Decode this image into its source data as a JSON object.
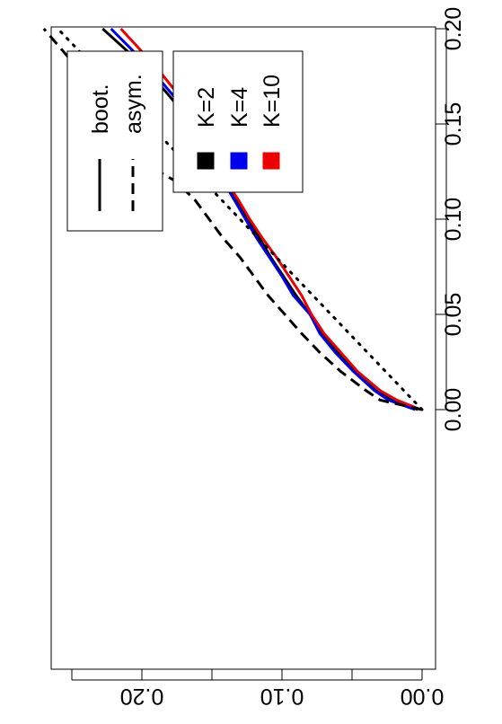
{
  "chart_data": {
    "type": "line",
    "orientation": "rotated-90",
    "title": "",
    "xlabel": "",
    "ylabel": "",
    "xlim": [
      0,
      0.2
    ],
    "ylim": [
      0,
      0.26
    ],
    "x_ticks": [
      "0.00",
      "0.05",
      "0.10",
      "0.15",
      "0.20"
    ],
    "y_ticks": [
      "0.00",
      "0.10",
      "0.20"
    ],
    "grid": false,
    "legend_styles": {
      "position": "top-left",
      "entries": [
        {
          "label": "boot.",
          "dash": "solid"
        },
        {
          "label": "asym.",
          "dash": "dashed"
        }
      ]
    },
    "legend_K": {
      "position": "top-left",
      "entries": [
        {
          "label": "K=2",
          "color": "#000000"
        },
        {
          "label": "K=4",
          "color": "#0000ee"
        },
        {
          "label": "K=10",
          "color": "#ee0000"
        }
      ]
    },
    "series": [
      {
        "key": "k2-boot",
        "color": "#000000",
        "dash": "solid",
        "x": [
          0.0,
          0.005,
          0.01,
          0.02,
          0.03,
          0.04,
          0.05,
          0.06,
          0.07,
          0.08,
          0.09,
          0.1,
          0.11,
          0.12,
          0.13,
          0.14,
          0.15,
          0.16,
          0.18,
          0.2
        ],
        "y": [
          0.003,
          0.022,
          0.033,
          0.048,
          0.06,
          0.071,
          0.08,
          0.09,
          0.099,
          0.108,
          0.116,
          0.125,
          0.133,
          0.142,
          0.15,
          0.158,
          0.165,
          0.175,
          0.198,
          0.228
        ]
      },
      {
        "key": "k4-boot",
        "color": "#0000ee",
        "dash": "solid",
        "x": [
          0.0,
          0.005,
          0.01,
          0.02,
          0.03,
          0.04,
          0.05,
          0.06,
          0.07,
          0.08,
          0.09,
          0.1,
          0.11,
          0.12,
          0.13,
          0.14,
          0.15,
          0.16,
          0.18,
          0.2
        ],
        "y": [
          0.005,
          0.024,
          0.034,
          0.049,
          0.062,
          0.073,
          0.08,
          0.092,
          0.1,
          0.109,
          0.118,
          0.126,
          0.134,
          0.142,
          0.148,
          0.156,
          0.162,
          0.172,
          0.195,
          0.222
        ]
      },
      {
        "key": "k10-boot",
        "color": "#ee0000",
        "dash": "solid",
        "x": [
          0.0,
          0.005,
          0.01,
          0.02,
          0.03,
          0.04,
          0.05,
          0.06,
          0.07,
          0.08,
          0.09,
          0.1,
          0.11,
          0.12,
          0.13,
          0.14,
          0.15,
          0.16,
          0.18,
          0.2
        ],
        "y": [
          0.001,
          0.018,
          0.03,
          0.046,
          0.058,
          0.07,
          0.079,
          0.086,
          0.095,
          0.104,
          0.114,
          0.123,
          0.131,
          0.14,
          0.146,
          0.152,
          0.158,
          0.168,
          0.19,
          0.215
        ]
      },
      {
        "key": "k2-asym",
        "color": "#000000",
        "dash": "dashed",
        "x": [
          0.0,
          0.005,
          0.01,
          0.02,
          0.03,
          0.04,
          0.05,
          0.06,
          0.07,
          0.08,
          0.09,
          0.1,
          0.11,
          0.12,
          0.13,
          0.15,
          0.17,
          0.2
        ],
        "y": [
          0.0,
          0.03,
          0.04,
          0.058,
          0.073,
          0.086,
          0.098,
          0.11,
          0.12,
          0.13,
          0.142,
          0.152,
          0.162,
          0.176,
          0.2,
          0.215,
          0.235,
          0.27
        ]
      },
      {
        "key": "reference",
        "color": "#000000",
        "dash": "dotted",
        "x": [
          0.0,
          0.2
        ],
        "y": [
          0.0,
          0.26
        ]
      }
    ]
  }
}
